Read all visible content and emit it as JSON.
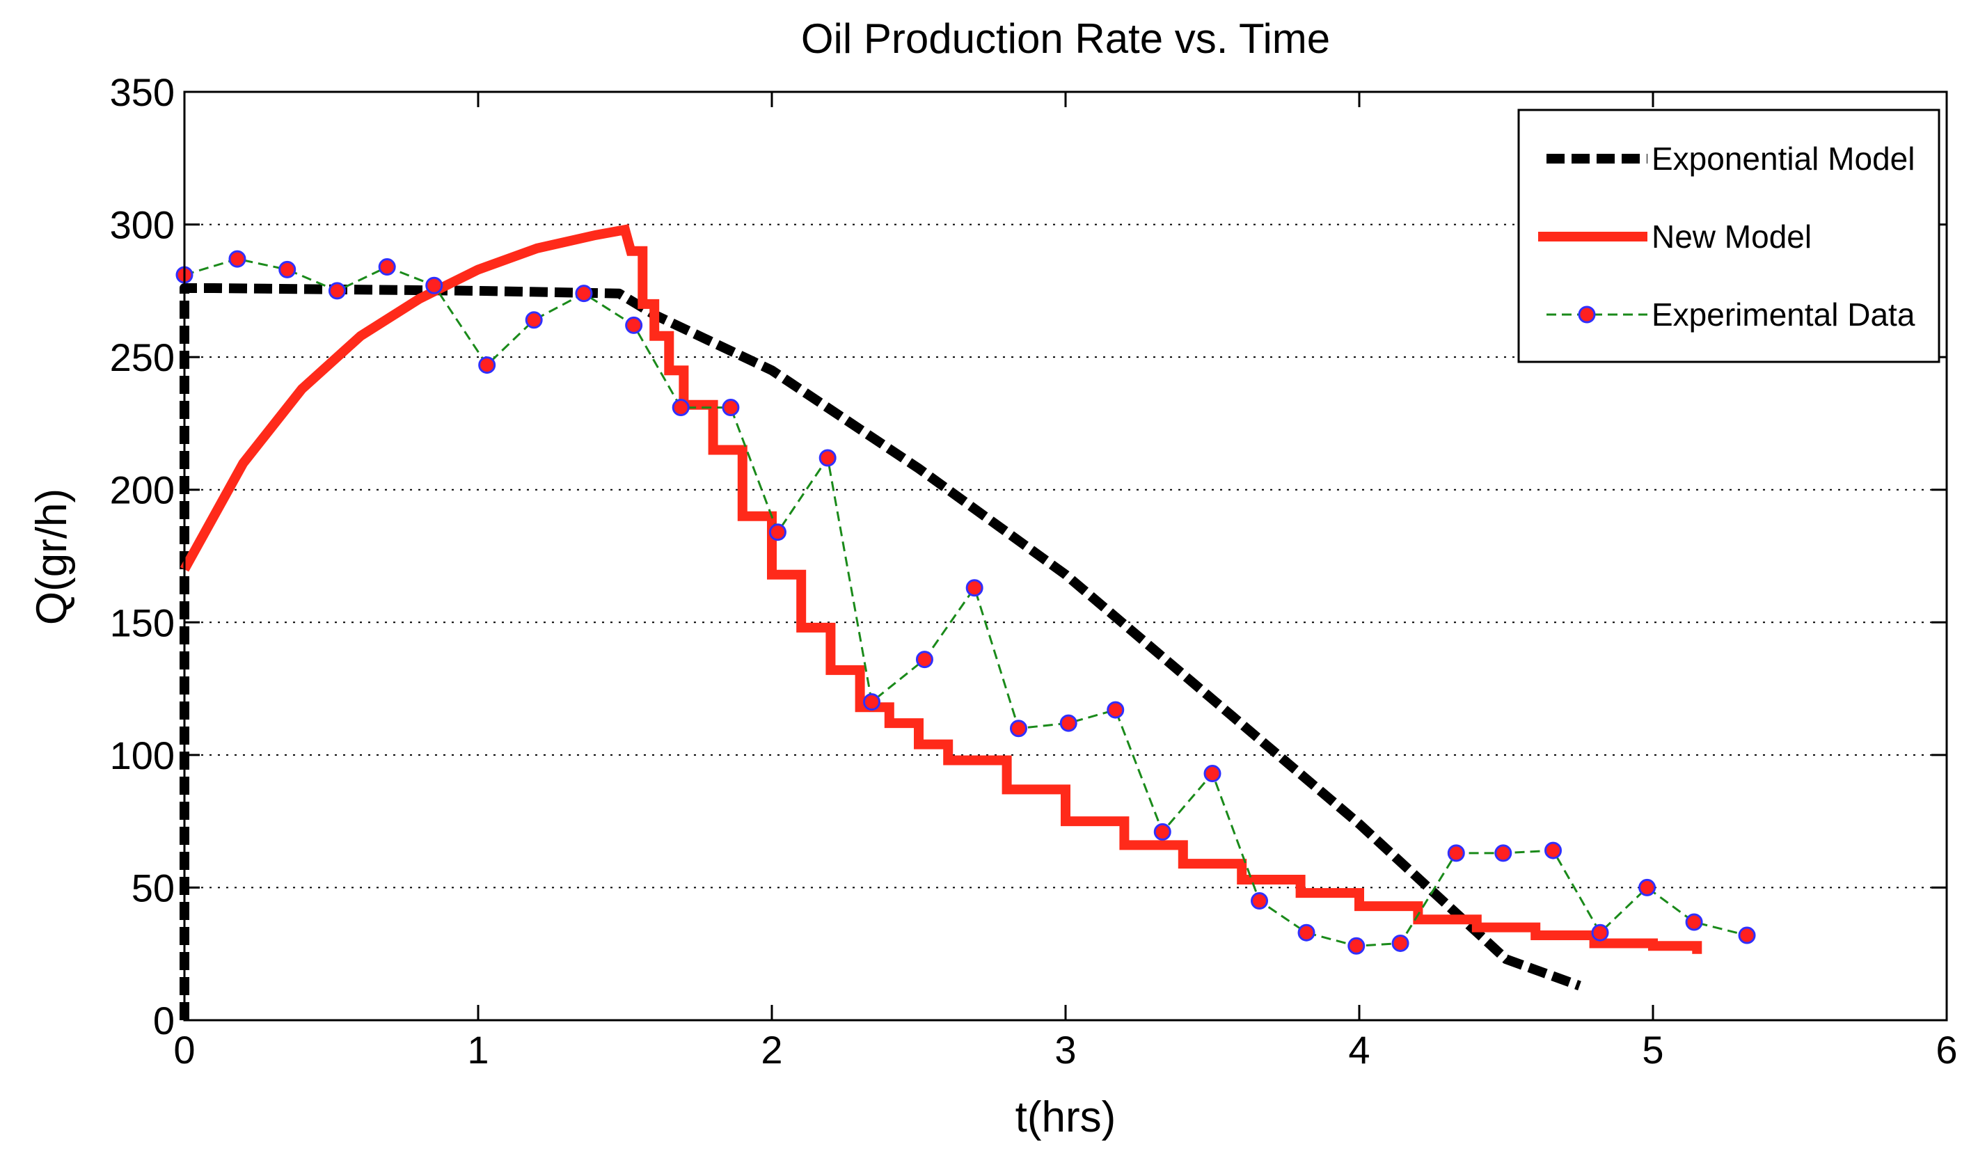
{
  "chart_data": {
    "type": "line",
    "title": "Oil Production Rate vs. Time",
    "xlabel": "t(hrs)",
    "ylabel": "Q(gr/h)",
    "xlim": [
      0,
      6
    ],
    "ylim": [
      0,
      350
    ],
    "xticks": [
      "0",
      "1",
      "2",
      "3",
      "4",
      "5",
      "6"
    ],
    "yticks": [
      "0",
      "50",
      "100",
      "150",
      "200",
      "250",
      "300",
      "350"
    ],
    "grid": "horizontal dotted",
    "legend_position": "top-right",
    "colors": {
      "exponential": "#000000",
      "new_model": "#ff2a1a",
      "experimental_line": "#1a8a1a",
      "experimental_marker_fill": "#ff2020",
      "experimental_marker_edge": "#3030ff"
    },
    "series": [
      {
        "name": "Exponential Model",
        "style": "dashed-black",
        "x": [
          0,
          0,
          0.1,
          1.0,
          1.48,
          1.6,
          2.0,
          2.5,
          3.0,
          3.5,
          4.0,
          4.5,
          4.75
        ],
        "y": [
          0,
          276,
          276,
          275,
          274,
          266,
          245,
          208,
          168,
          121,
          74,
          23,
          13
        ]
      },
      {
        "name": "New Model",
        "style": "solid-red",
        "x": [
          0,
          0.2,
          0.4,
          0.6,
          0.8,
          1.0,
          1.2,
          1.4,
          1.5,
          1.52,
          1.56,
          1.6,
          1.65,
          1.7,
          1.8,
          1.9,
          2.0,
          2.1,
          2.2,
          2.3,
          2.4,
          2.5,
          2.6,
          2.8,
          3.0,
          3.2,
          3.4,
          3.6,
          3.8,
          4.0,
          4.2,
          4.4,
          4.6,
          4.8,
          5.0,
          5.15
        ],
        "y": [
          170,
          210,
          238,
          258,
          272,
          283,
          291,
          296,
          298,
          290,
          270,
          258,
          245,
          232,
          215,
          190,
          168,
          148,
          132,
          118,
          112,
          104,
          98,
          87,
          75,
          66,
          59,
          53,
          48,
          43,
          38,
          35,
          32,
          29,
          28,
          25
        ]
      },
      {
        "name": "Experimental Data",
        "style": "dashed-green-with-markers",
        "x": [
          0.0,
          0.18,
          0.35,
          0.52,
          0.69,
          0.85,
          1.03,
          1.19,
          1.36,
          1.53,
          1.69,
          1.86,
          2.02,
          2.19,
          2.34,
          2.52,
          2.69,
          2.84,
          3.01,
          3.17,
          3.33,
          3.5,
          3.66,
          3.82,
          3.99,
          4.14,
          4.33,
          4.49,
          4.66,
          4.82,
          4.98,
          5.14,
          5.32
        ],
        "y": [
          281,
          287,
          283,
          275,
          284,
          277,
          247,
          264,
          274,
          262,
          231,
          231,
          184,
          212,
          120,
          136,
          163,
          110,
          112,
          117,
          71,
          93,
          45,
          33,
          28,
          29,
          63,
          63,
          64,
          33,
          50,
          37,
          32
        ]
      }
    ]
  }
}
